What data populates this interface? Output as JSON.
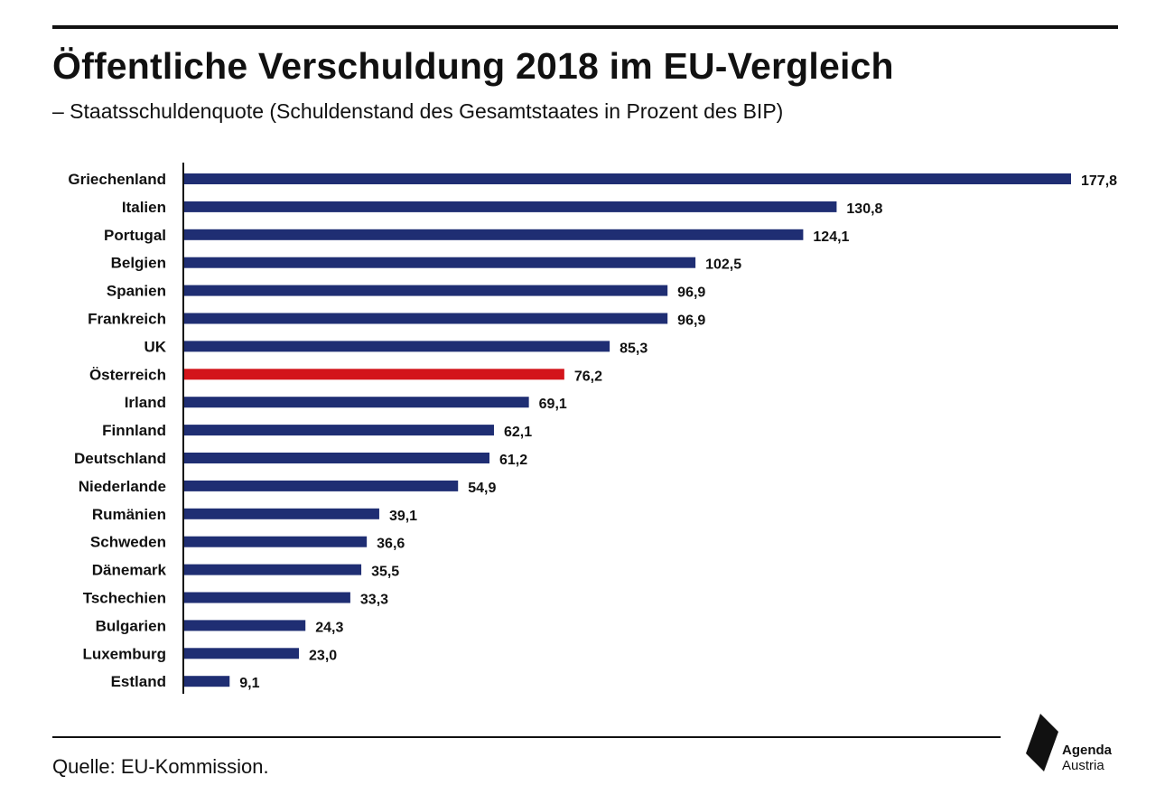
{
  "header": {
    "title": "Öffentliche Verschuldung 2018 im EU-Vergleich",
    "subtitle": "– Staatsschuldenquote (Schuldenstand des Gesamtstaates in Prozent des BIP)"
  },
  "footer": {
    "source": "Quelle: EU-Kommission."
  },
  "logo": {
    "brand": "Agenda",
    "sub": "Austria"
  },
  "colors": {
    "bar": "#1f2e73",
    "highlight": "#d3141b",
    "text": "#111111"
  },
  "chart_data": {
    "type": "bar",
    "orientation": "horizontal",
    "title": "Öffentliche Verschuldung 2018 im EU-Vergleich",
    "subtitle": "– Staatsschuldenquote (Schuldenstand des Gesamtstaates in Prozent des BIP)",
    "categories": [
      "Griechenland",
      "Italien",
      "Portugal",
      "Belgien",
      "Spanien",
      "Frankreich",
      "UK",
      "Österreich",
      "Irland",
      "Finnland",
      "Deutschland",
      "Niederlande",
      "Rumänien",
      "Schweden",
      "Dänemark",
      "Tschechien",
      "Bulgarien",
      "Luxemburg",
      "Estland"
    ],
    "values": [
      177.8,
      130.8,
      124.1,
      102.5,
      96.9,
      96.9,
      85.3,
      76.2,
      69.1,
      62.1,
      61.2,
      54.9,
      39.1,
      36.6,
      35.5,
      33.3,
      24.3,
      23.0,
      9.1
    ],
    "value_labels": [
      "177,8",
      "130,8",
      "124,1",
      "102,5",
      "96,9",
      "96,9",
      "85,3",
      "76,2",
      "69,1",
      "62,1",
      "61,2",
      "54,9",
      "39,1",
      "36,6",
      "35,5",
      "33,3",
      "24,3",
      "23,0",
      "9,1"
    ],
    "highlight": "Österreich",
    "xlim": [
      0,
      177.8
    ],
    "grid": false,
    "legend": "none"
  }
}
